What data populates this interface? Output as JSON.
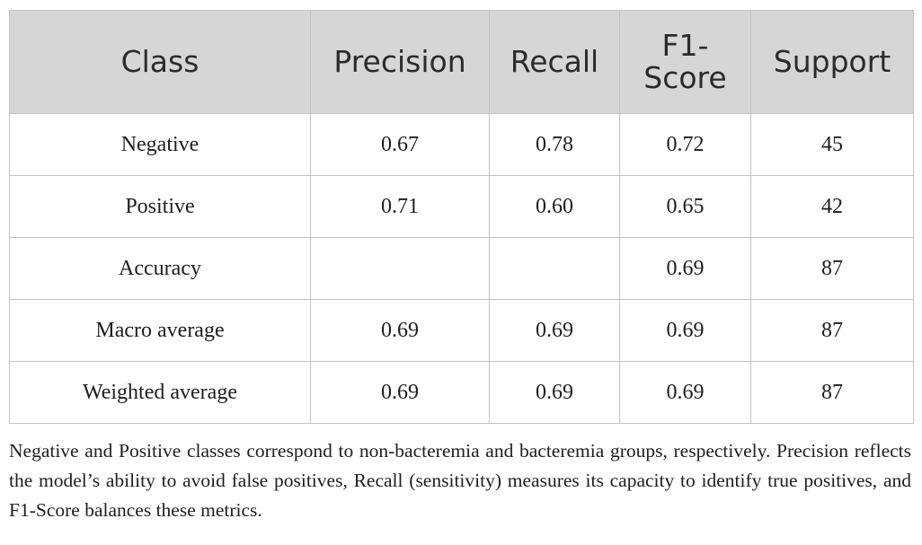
{
  "table": {
    "headers": {
      "class": "Class",
      "precision": "Precision",
      "recall": "Recall",
      "f1_line1": "F1-",
      "f1_line2": "Score",
      "support": "Support"
    },
    "rows": [
      {
        "class": "Negative",
        "precision": "0.67",
        "recall": "0.78",
        "f1": "0.72",
        "support": "45"
      },
      {
        "class": "Positive",
        "precision": "0.71",
        "recall": "0.60",
        "f1": "0.65",
        "support": "42"
      },
      {
        "class": "Accuracy",
        "precision": "",
        "recall": "",
        "f1": "0.69",
        "support": "87"
      },
      {
        "class": "Macro average",
        "precision": "0.69",
        "recall": "0.69",
        "f1": "0.69",
        "support": "87"
      },
      {
        "class": "Weighted average",
        "precision": "0.69",
        "recall": "0.69",
        "f1": "0.69",
        "support": "87"
      }
    ]
  },
  "caption": "Negative and Positive classes correspond to non-bacteremia and bacteremia groups, respectively. Precision reflects the model’s ability to avoid false positives, Recall (sensitivity) measures its capacity to identify true positives, and F1-Score balances these metrics.",
  "colors": {
    "header_bg": "#d6d6d6",
    "border": "#c2c2c2",
    "text": "#1e1e1e"
  }
}
